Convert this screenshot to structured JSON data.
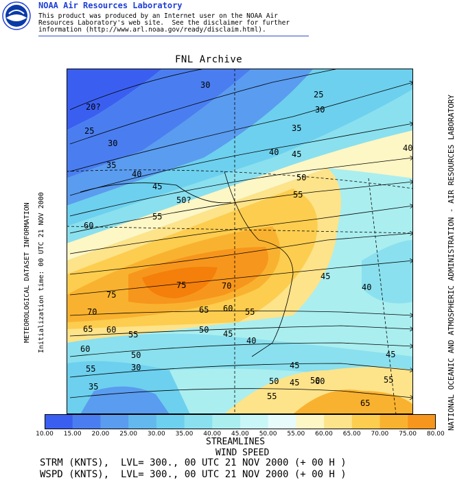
{
  "header": {
    "org_name": "NOAA Air Resources Laboratory",
    "logo_text": "NOAA",
    "disclaimer_lines": [
      "This product was produced by an Internet user on the NOAA Air",
      "Resources Laboratory's web site.  See the disclaimer for further",
      "information (http://www.arl.noaa.gov/ready/disclaim.html)."
    ]
  },
  "map": {
    "title": "FNL Archive",
    "left_text_1": "METEOROLOGICAL DATASET INFORMATION",
    "left_text_2": "Initialization time: 00 UTC 21 NOV 2000",
    "right_text": "NATIONAL OCEANIC AND ATMOSPHERIC ADMINISTRATION - AIR RESOURCES LABORATORY",
    "contour_labels": [
      "30",
      "25",
      "30",
      "20?",
      "25",
      "30",
      "35",
      "40",
      "45",
      "50?",
      "60",
      "55",
      "55",
      "50",
      "45",
      "40",
      "35",
      "40",
      "45",
      "45",
      "40",
      "50",
      "55",
      "60",
      "65",
      "70",
      "75",
      "75",
      "70",
      "65",
      "60",
      "55",
      "60",
      "55",
      "50",
      "45",
      "50",
      "55",
      "45",
      "35",
      "30",
      "40",
      "45",
      "50",
      "55",
      "60",
      "65"
    ]
  },
  "colorbar": {
    "ticks": [
      "10.00",
      "15.00",
      "20.00",
      "25.00",
      "30.00",
      "35.00",
      "40.00",
      "45.00",
      "50.00",
      "55.00",
      "60.00",
      "65.00",
      "70.00",
      "75.00",
      "80.00"
    ],
    "colors": [
      "#3a5ff0",
      "#4a7ef0",
      "#5a9cef",
      "#63b9ee",
      "#6dd0ee",
      "#8ae0ee",
      "#aaeef0",
      "#c9f6f6",
      "#e8fbfb",
      "#fdf6c5",
      "#fde38a",
      "#fccd4f",
      "#f9b22f",
      "#f7961c",
      "#f57f0b"
    ]
  },
  "legend": {
    "line1": "STREAMLINES",
    "line2": "WIND SPEED",
    "footer1": "STRM (KNTS),  LVL= 300., 00 UTC 21 NOV 2000 (+ 00 H )",
    "footer2": "WSPD (KNTS),  LVL= 300., 00 UTC 21 NOV 2000 (+ 00 H )"
  }
}
